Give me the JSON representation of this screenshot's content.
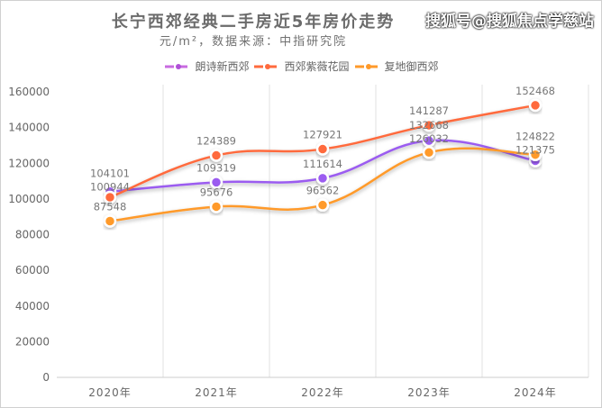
{
  "chart_data": {
    "type": "line",
    "title": "长宁西郊经典二手房近5年房价走势",
    "subtitle": "元/m²，数据来源：中指研究院",
    "categories": [
      "2020年",
      "2021年",
      "2022年",
      "2023年",
      "2024年"
    ],
    "ylim": [
      0,
      160000
    ],
    "yticks": [
      0,
      20000,
      40000,
      60000,
      80000,
      100000,
      120000,
      140000,
      160000
    ],
    "grid": "vertical",
    "legend_position": "top",
    "smooth": true,
    "series": [
      {
        "name": "朗诗新西郊",
        "values": [
          104101,
          109319,
          111614,
          132668,
          121375
        ],
        "color": "#9b5cf0"
      },
      {
        "name": "西郊紫薇花园",
        "values": [
          100944,
          124389,
          127921,
          141287,
          152468
        ],
        "color": "#ff6a3d"
      },
      {
        "name": "复地御西郊",
        "values": [
          87548,
          95676,
          96562,
          126032,
          124822
        ],
        "color": "#ff9a2a"
      }
    ]
  },
  "watermark": "搜狐号@搜狐焦点学慈站"
}
